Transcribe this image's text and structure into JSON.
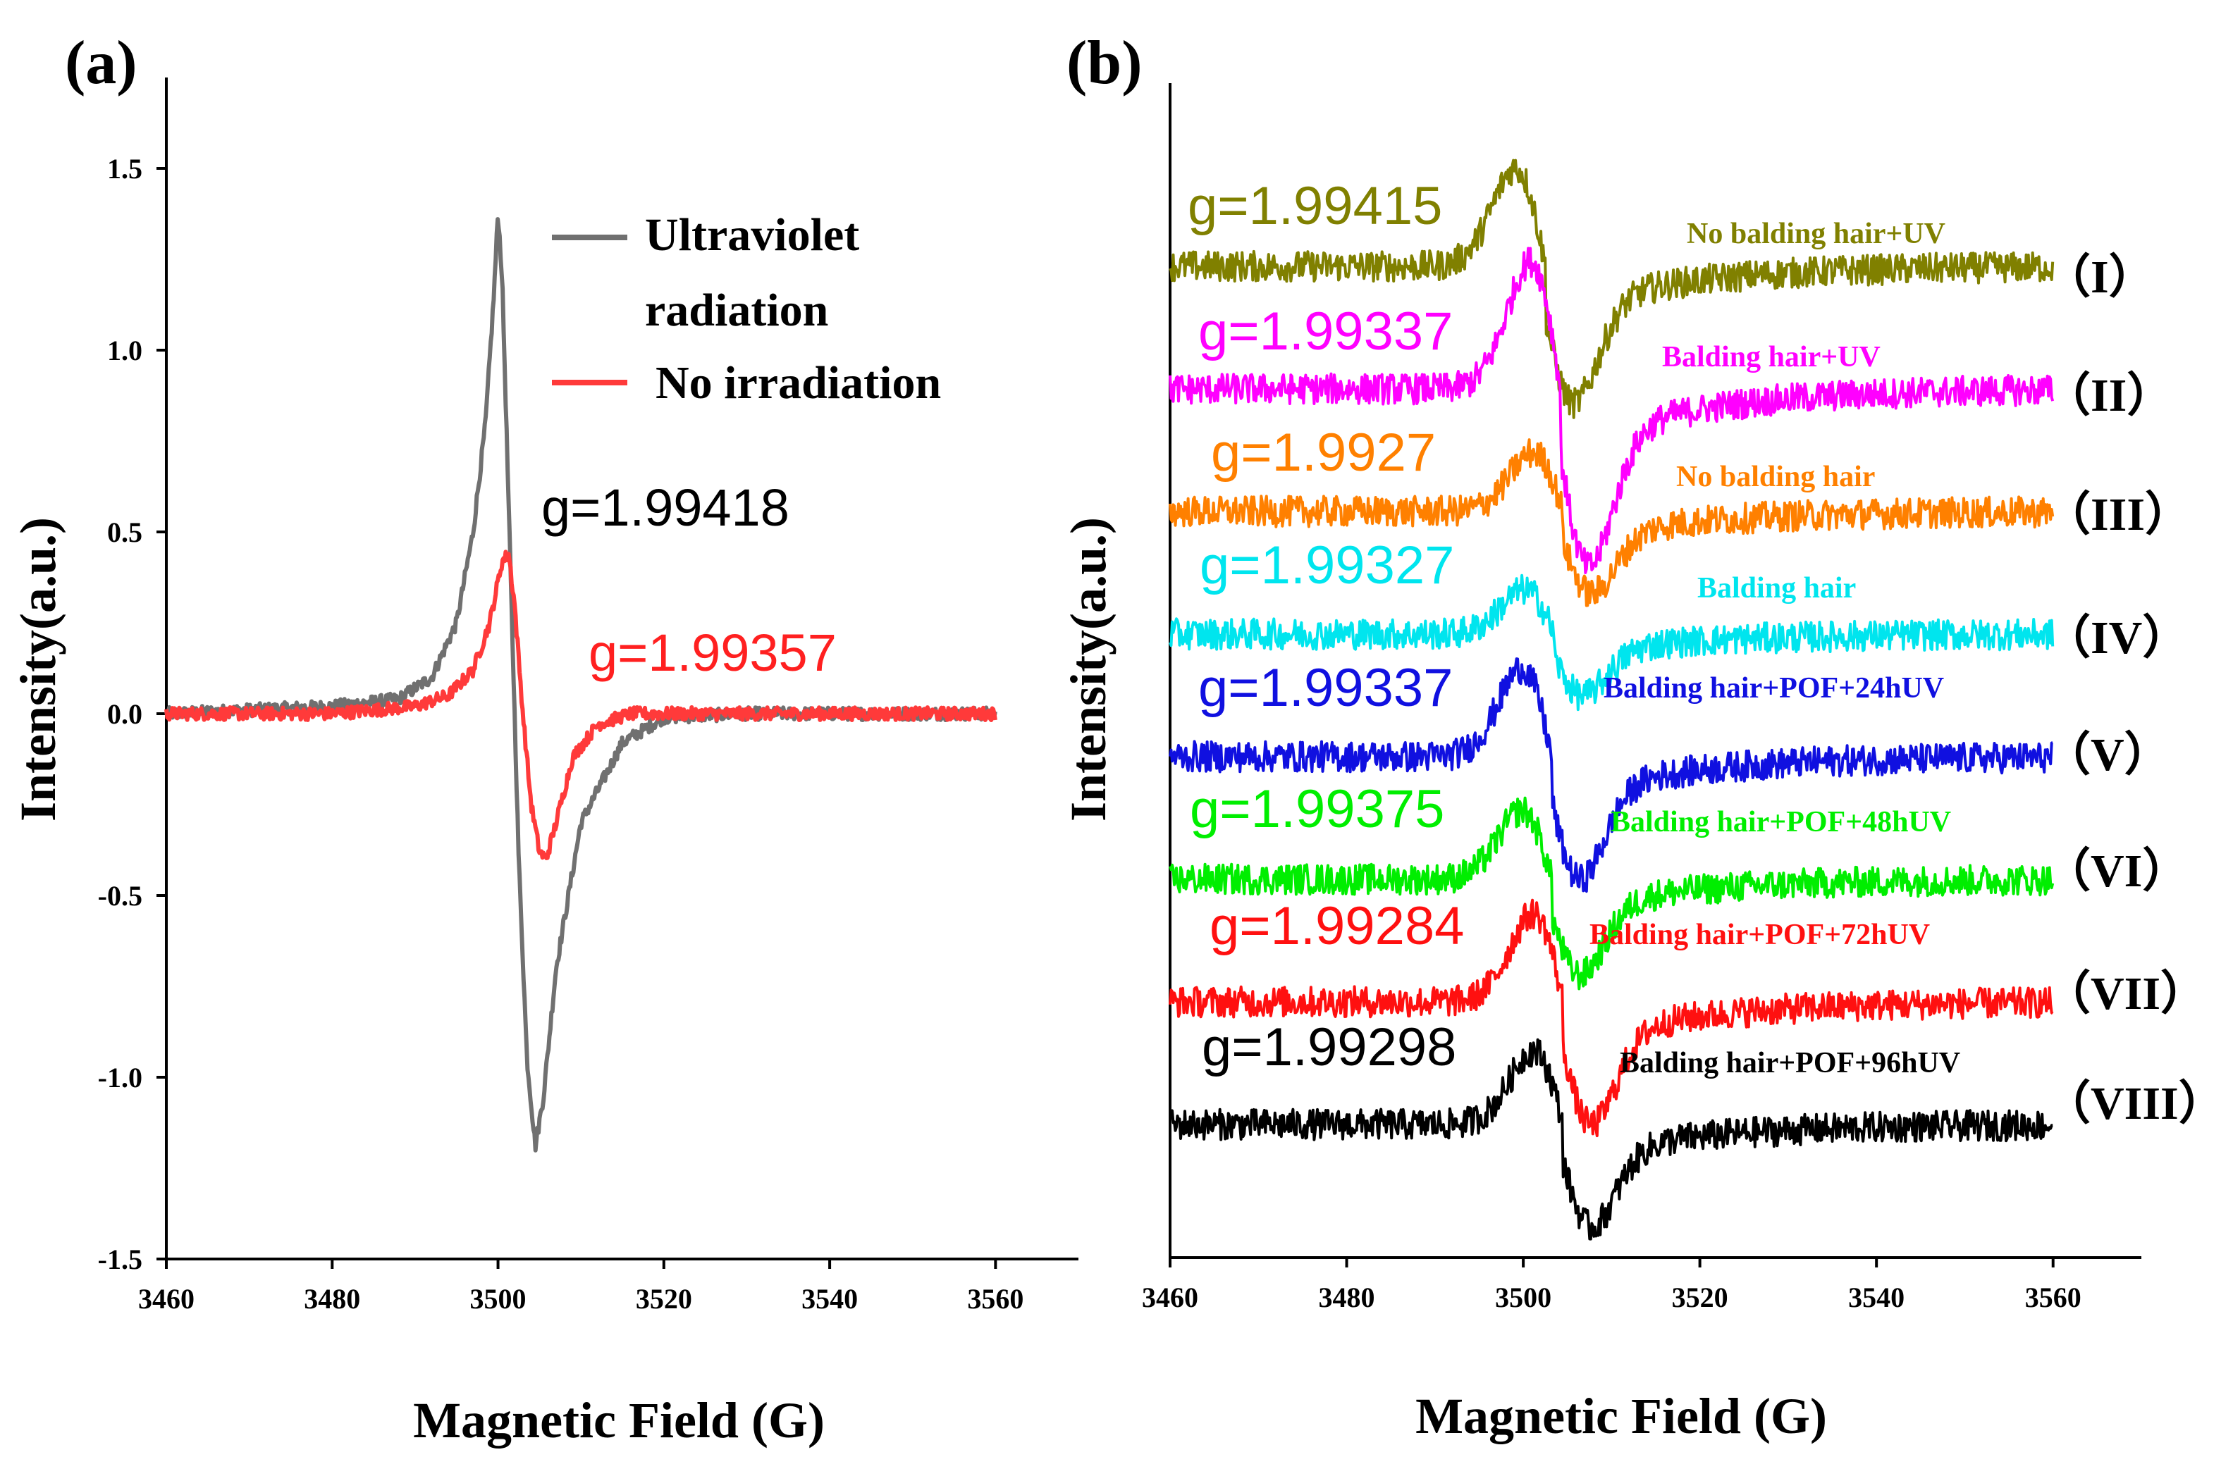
{
  "chart_data": [
    {
      "panel": "(a)",
      "type": "line",
      "xlabel": "Magnetic Field (G)",
      "ylabel": "Intensity(a.u.)",
      "xlim": [
        3460,
        3570
      ],
      "ylim": [
        -1.5,
        1.75
      ],
      "xticks": [
        3460,
        3480,
        3500,
        3520,
        3540,
        3560
      ],
      "yticks": [
        -1.5,
        -1.0,
        -0.5,
        0.0,
        0.5,
        1.0,
        1.5
      ],
      "ytick_labels": [
        "-1.5",
        "-1.0",
        "-0.5",
        "0.0",
        "0.5",
        "1.0",
        "1.5"
      ],
      "legend": [
        "Ultraviolet radiation",
        "No irradiation"
      ],
      "legend_lines": [
        "Ultraviolet",
        "radiation"
      ],
      "legend_position": "top-right",
      "series": [
        {
          "name": "Ultraviolet radiation",
          "color": "#707070",
          "x": [
            3460,
            3480,
            3488,
            3492,
            3495,
            3497,
            3498.5,
            3499.5,
            3500,
            3500.5,
            3501.5,
            3502.5,
            3503.5,
            3504.5,
            3505.5,
            3507,
            3510,
            3515,
            3520,
            3530,
            3545,
            3560
          ],
          "y": [
            0.0,
            0.02,
            0.04,
            0.1,
            0.25,
            0.5,
            0.8,
            1.15,
            1.38,
            1.2,
            0.4,
            -0.4,
            -0.95,
            -1.19,
            -1.05,
            -0.7,
            -0.3,
            -0.08,
            -0.01,
            0.0,
            0.0,
            0.0
          ]
        },
        {
          "name": "No irradiation",
          "color": "#ff3a3a",
          "x": [
            3460,
            3480,
            3490,
            3494,
            3497,
            3499,
            3500.5,
            3501.3,
            3502,
            3503,
            3504,
            3505,
            3505.8,
            3507,
            3509,
            3512,
            3516,
            3520,
            3530,
            3545,
            3560
          ],
          "y": [
            0.0,
            0.0,
            0.02,
            0.05,
            0.12,
            0.25,
            0.42,
            0.44,
            0.3,
            0.0,
            -0.25,
            -0.38,
            -0.4,
            -0.3,
            -0.12,
            -0.03,
            0.0,
            0.0,
            0.0,
            0.0,
            0.0
          ]
        }
      ],
      "annotations": [
        {
          "text": "g=1.99418",
          "color": "#000000"
        },
        {
          "text": "g=1.99357",
          "color": "#ff2020"
        }
      ]
    },
    {
      "panel": "(b)",
      "type": "line",
      "xlabel": "Magnetic Field (G)",
      "ylabel": "Intensity(a.u.)",
      "xlim": [
        3460,
        3570
      ],
      "xticks": [
        3460,
        3480,
        3500,
        3520,
        3540,
        3560
      ],
      "yticks_shown": false,
      "series": [
        {
          "name": "No balding hair+UV",
          "roman": "（I）",
          "g": "g=1.99415",
          "color": "#808000",
          "center": 3502.5,
          "amplitude": 1.0,
          "baseline": 0.0
        },
        {
          "name": "Balding hair+UV",
          "roman": "（II）",
          "g": "g=1.99337",
          "color": "#ff00ff",
          "center": 3504.2,
          "amplitude": 1.3,
          "baseline": -0.2
        },
        {
          "name": "No balding hair",
          "roman": "（III）",
          "g": "g=1.9927",
          "color": "#ff8000",
          "center": 3504.5,
          "amplitude": 0.6,
          "baseline": -0.4
        },
        {
          "name": "Balding hair",
          "roman": "（IV）",
          "g": "g=1.99327",
          "color": "#00e5ee",
          "center": 3503.5,
          "amplitude": 0.45,
          "baseline": -0.6
        },
        {
          "name": "Balding hair+POF+24hUV",
          "roman": "（V）",
          "g": "g=1.99337",
          "color": "#1010e0",
          "center": 3503.2,
          "amplitude": 0.9,
          "baseline": -0.8
        },
        {
          "name": "Balding hair+POF+48hUV",
          "roman": "（VI）",
          "g": "g=1.99375",
          "color": "#00ee00",
          "center": 3503.2,
          "amplitude": 0.7,
          "baseline": -1.0
        },
        {
          "name": "Balding hair+POF+72hUV",
          "roman": "（VII）",
          "g": "g=1.99284",
          "color": "#ff1010",
          "center": 3504.5,
          "amplitude": 0.9,
          "baseline": -1.2
        },
        {
          "name": "Balding hair+POF+96hUV",
          "roman": "（VIII）",
          "g": "g=1.99298",
          "color": "#000000",
          "center": 3504.5,
          "amplitude": 0.75,
          "baseline": -1.4
        }
      ]
    }
  ]
}
